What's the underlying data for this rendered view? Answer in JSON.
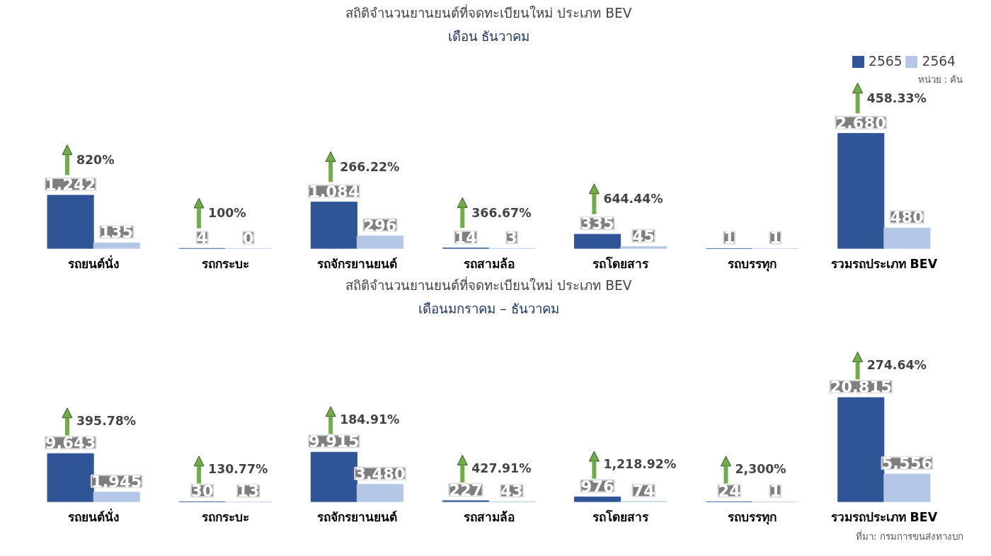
{
  "chart_data": [
    {
      "type": "bar",
      "title": "สถิติจำนวนยานยนต์ที่จดทะเบียนใหม่ ประเภท BEV",
      "subtitle": "เดือน ธันวาคม",
      "categories": [
        "รถยนต์นั่ง",
        "รถกระบะ",
        "รถจักรยานยนต์",
        "รถสามล้อ",
        "รถโดยสาร",
        "รถบรรทุก",
        "รวมรถประเภท BEV"
      ],
      "series": [
        {
          "name": "2565",
          "color": "#2f5597",
          "values": [
            1242,
            4,
            1084,
            14,
            335,
            1,
            2680
          ],
          "value_labels": [
            "1,242",
            "4",
            "1,084",
            "14",
            "335",
            "1",
            "2,680"
          ]
        },
        {
          "name": "2564",
          "color": "#b4c7e7",
          "values": [
            135,
            0,
            296,
            3,
            45,
            1,
            480
          ],
          "value_labels": [
            "135",
            "0",
            "296",
            "3",
            "45",
            "1",
            "480"
          ]
        }
      ],
      "legend": "top right",
      "tick_labels": "x",
      "annotations": [
        {
          "text": "820%",
          "x": "รถยนต์นั่ง",
          "y": 1242
        },
        {
          "text": "100%",
          "x": "รถกระบะ",
          "y": 4
        },
        {
          "text": "266.22%",
          "x": "รถจักรยานยนต์",
          "y": 1084
        },
        {
          "text": "366.67%",
          "x": "รถสามล้อ",
          "y": 14
        },
        {
          "text": "644.44%",
          "x": "รถโดยสาร",
          "y": 335
        },
        {
          "text": "458.33%",
          "x": "รวมรถประเภท BEV",
          "y": 2680
        },
        "หน่วย : คัน"
      ]
    },
    {
      "type": "bar",
      "title": "สถิติจำนวนยานยนต์ที่จดทะเบียนใหม่ ประเภท BEV",
      "subtitle": "เดือนมกราคม – ธันวาคม",
      "categories": [
        "รถยนต์นั่ง",
        "รถกระบะ",
        "รถจักรยานยนต์",
        "รถสามล้อ",
        "รถโดยสาร",
        "รถบรรทุก",
        "รวมรถประเภท BEV"
      ],
      "series": [
        {
          "color": "#2f5597",
          "values": [
            9643,
            30,
            9915,
            227,
            976,
            24,
            20815
          ],
          "value_labels": [
            "9,643",
            "30",
            "9,915",
            "227",
            "976",
            "24",
            "20,815"
          ]
        },
        {
          "color": "#b4c7e7",
          "values": [
            1945,
            13,
            3480,
            43,
            74,
            1,
            5556
          ],
          "value_labels": [
            "1,945",
            "13",
            "3,480",
            "43",
            "74",
            "1",
            "5,556"
          ]
        }
      ],
      "tick_labels": "x",
      "annotations": [
        {
          "text": "395.78%",
          "x": "รถยนต์นั่ง",
          "y": 9643
        },
        {
          "text": "130.77%",
          "x": "รถกระบะ",
          "y": 30
        },
        {
          "text": "184.91%",
          "x": "รถจักรยานยนต์",
          "y": 9915
        },
        {
          "text": "427.91%",
          "x": "รถสามล้อ",
          "y": 227
        },
        {
          "text": "1,218.92%",
          "x": "รถโดยสาร",
          "y": 976
        },
        {
          "text": "2,300%",
          "x": "รถบรรทุก",
          "y": 24
        },
        {
          "text": "274.64%",
          "x": "รวมรถประเภท BEV",
          "y": 20815
        },
        "ที่มา: กรมการขนส่งทางบก"
      ]
    }
  ]
}
